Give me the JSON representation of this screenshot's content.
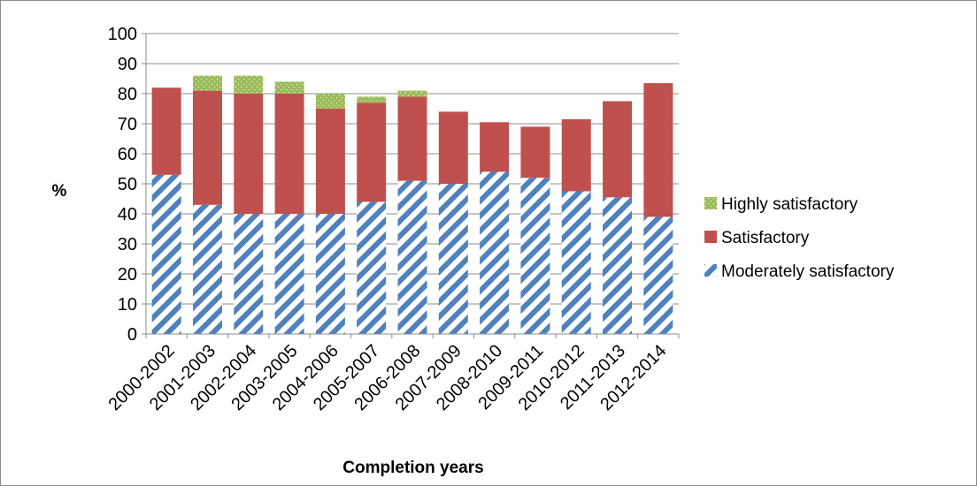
{
  "chart_data": {
    "type": "bar",
    "stacked": true,
    "categories": [
      "2000-2002",
      "2001-2003",
      "2002-2004",
      "2003-2005",
      "2004-2006",
      "2005-2007",
      "2006-2008",
      "2007-2009",
      "2008-2010",
      "2009-2011",
      "2010-2012",
      "2011-2013",
      "2012-2014"
    ],
    "series": [
      {
        "name": "Moderately satisfactory",
        "values": [
          53,
          43,
          40,
          40,
          40,
          44,
          51,
          50,
          54,
          52,
          47.5,
          45.5,
          39
        ],
        "color": "#4f81bd",
        "pattern": "diagonal-stripes"
      },
      {
        "name": "Satisfactory",
        "values": [
          29,
          38,
          40,
          40,
          35,
          33,
          28,
          24,
          16.5,
          17,
          24,
          32,
          44.5
        ],
        "color": "#c0504d",
        "pattern": "solid"
      },
      {
        "name": "Highly satisfactory",
        "values": [
          0,
          5,
          6,
          4,
          5,
          2,
          2,
          0,
          0,
          0,
          0,
          0,
          0
        ],
        "color": "#9bbb59",
        "pattern": "dotted"
      }
    ],
    "legend_order": [
      "Highly satisfactory",
      "Satisfactory",
      "Moderately satisfactory"
    ],
    "ylabel": "%",
    "xlabel": "Completion years",
    "yticks": [
      "0",
      "10",
      "20",
      "30",
      "40",
      "50",
      "60",
      "70",
      "80",
      "90",
      "100"
    ],
    "ylim": [
      0,
      100
    ],
    "grid": "horizontal",
    "legend_position": "right"
  }
}
